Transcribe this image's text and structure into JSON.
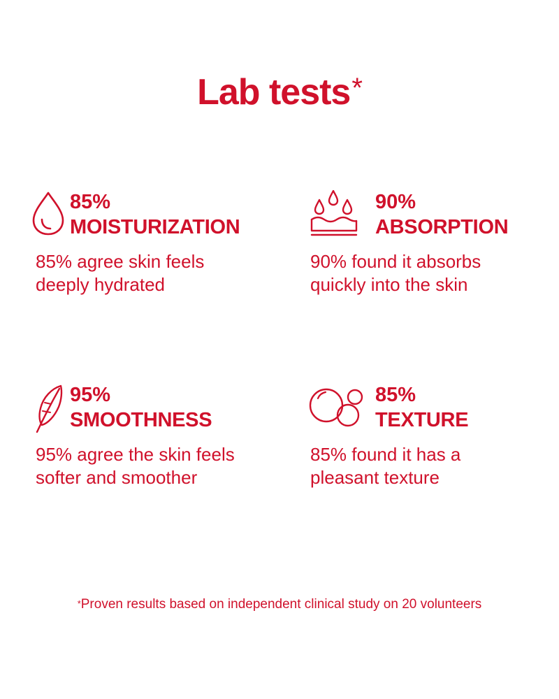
{
  "header": {
    "title": "Lab tests",
    "title_mark": "*"
  },
  "stats": [
    {
      "icon": "drop-icon",
      "percent": "85%",
      "label": "MOISTURIZATION",
      "description": "85% agree skin feels deeply hydrated"
    },
    {
      "icon": "water-absorption-icon",
      "percent": "90%",
      "label": "ABSORPTION",
      "description": "90% found it absorbs quickly into the skin"
    },
    {
      "icon": "feather-icon",
      "percent": "95%",
      "label": "SMOOTHNESS",
      "description": "95% agree the skin feels softer and smoother"
    },
    {
      "icon": "bubbles-icon",
      "percent": "85%",
      "label": "TEXTURE",
      "description": "85% found it has a pleasant texture"
    }
  ],
  "footer": {
    "note_mark": "*",
    "note": "Proven results based on independent clinical study on 20 volunteers"
  },
  "colors": {
    "accent": "#d0112b",
    "background": "#ffffff"
  }
}
